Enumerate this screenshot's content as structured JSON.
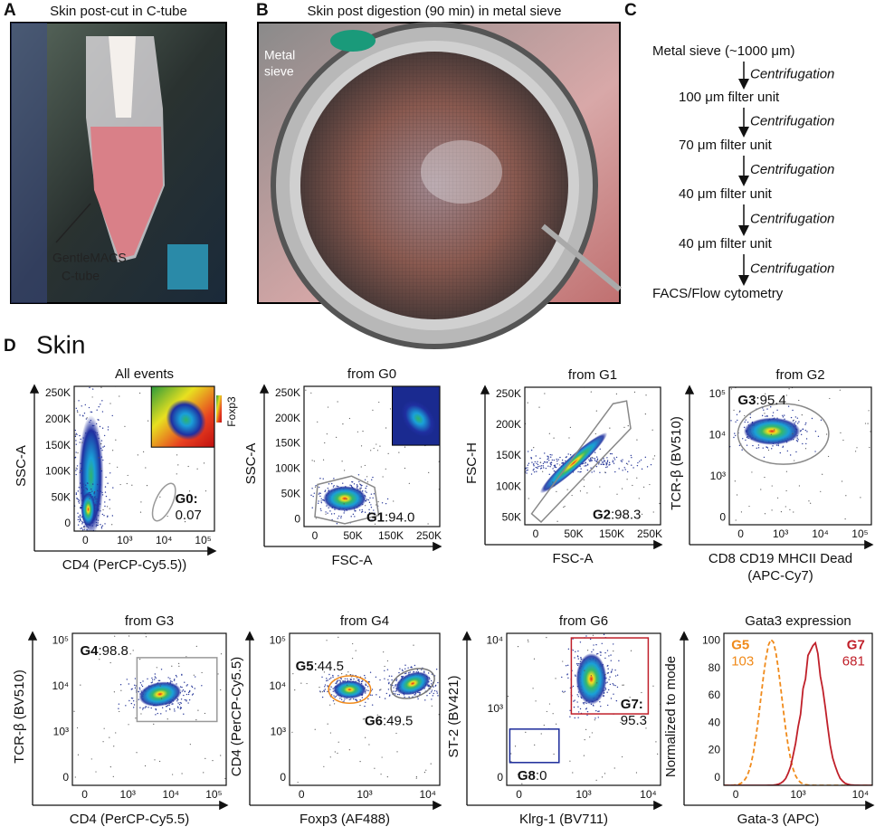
{
  "panels": {
    "a": {
      "letter": "A",
      "title": "Skin post-cut in C-tube",
      "annotation_lines": [
        "GentleMACS",
        "C-tube"
      ]
    },
    "b": {
      "letter": "B",
      "title": "Skin post digestion (90 min) in metal sieve",
      "annotation_lines": [
        "Metal",
        "sieve"
      ]
    },
    "c": {
      "letter": "C",
      "steps": [
        "Metal sieve (~1000 μm)",
        "100 μm filter unit",
        "70 μm filter unit",
        "40 μm filter unit",
        "40 μm filter unit",
        "FACS/Flow cytometry"
      ],
      "transitions": [
        "Centrifugation",
        "Centrifugation",
        "Centrifugation",
        "Centrifugation",
        "Centrifugation"
      ]
    },
    "d": {
      "letter": "D",
      "title": "Skin",
      "plots": [
        {
          "title": "All events",
          "ylabel": [
            "SSC-A"
          ],
          "xlabel": [
            "CD4 (PerCP-Cy5.5))"
          ],
          "yticks": [
            "0",
            "50K",
            "100K",
            "150K",
            "200K",
            "250K"
          ],
          "xticks": [
            "0",
            "10³",
            "10⁴",
            "10⁵"
          ],
          "inset_label": "Foxp3",
          "gates": [
            {
              "name": "G0:",
              "value": "0.07"
            }
          ]
        },
        {
          "title": "from G0",
          "ylabel": [
            "SSC-A"
          ],
          "xlabel": [
            "FSC-A"
          ],
          "yticks": [
            "0",
            "50K",
            "100K",
            "150K",
            "200K",
            "250K"
          ],
          "xticks": [
            "0",
            "50K",
            "150K",
            "250K"
          ],
          "gates": [
            {
              "name": "G1",
              "value": ":94.0"
            }
          ]
        },
        {
          "title": "from G1",
          "ylabel": [
            "FSC-H"
          ],
          "xlabel": [
            "FSC-A"
          ],
          "yticks": [
            "50K",
            "100K",
            "150K",
            "200K",
            "250K"
          ],
          "xticks": [
            "0",
            "50K",
            "150K",
            "250K"
          ],
          "gates": [
            {
              "name": "G2",
              "value": ":98.3"
            }
          ]
        },
        {
          "title": "from G2",
          "ylabel": [
            "TCR-β (BV510)"
          ],
          "xlabel": [
            "CD8 CD19 MHCII Dead",
            "(APC-Cy7)"
          ],
          "yticks": [
            "0",
            "10³",
            "10⁴",
            "10⁵"
          ],
          "xticks": [
            "0",
            "10³",
            "10⁴",
            "10⁵"
          ],
          "gates": [
            {
              "name": "G3",
              "value": ":95.4"
            }
          ]
        },
        {
          "title": "from G3",
          "ylabel": [
            "TCR-β (BV510)"
          ],
          "xlabel": [
            "CD4 (PerCP-Cy5.5)"
          ],
          "yticks": [
            "0",
            "10³",
            "10⁴",
            "10⁵"
          ],
          "xticks": [
            "0",
            "10³",
            "10⁴",
            "10⁵"
          ],
          "gates": [
            {
              "name": "G4",
              "value": ":98.8"
            }
          ]
        },
        {
          "title": "from G4",
          "ylabel": [
            "CD4 (PerCP-Cy5.5)"
          ],
          "xlabel": [
            "Foxp3 (AF488)"
          ],
          "yticks": [
            "0",
            "10³",
            "10⁴",
            "10⁵"
          ],
          "xticks": [
            "0",
            "10³",
            "10⁴"
          ],
          "gates": [
            {
              "name": "G5",
              "value": ":44.5"
            },
            {
              "name": "G6",
              "value": ":49.5"
            }
          ]
        },
        {
          "title": "from G6",
          "ylabel": [
            "ST-2 (BV421)"
          ],
          "xlabel": [
            "Klrg-1 (BV711)"
          ],
          "yticks": [
            "0",
            "10³",
            "10⁴"
          ],
          "xticks": [
            "0",
            "10³",
            "10⁴"
          ],
          "gates": [
            {
              "name": "G7:",
              "value": "95.3"
            },
            {
              "name": "G8",
              "value": ":0"
            }
          ]
        },
        {
          "title": "Gata3 expression",
          "ylabel": [
            "Normalized to mode"
          ],
          "xlabel": [
            "Gata-3 (APC)"
          ],
          "yticks": [
            "0",
            "20",
            "40",
            "60",
            "80",
            "100"
          ],
          "xticks": [
            "0",
            "10³",
            "10⁴"
          ],
          "gates": [
            {
              "name": "G5",
              "value": "103"
            },
            {
              "name": "G7",
              "value": "681"
            }
          ]
        }
      ]
    }
  }
}
